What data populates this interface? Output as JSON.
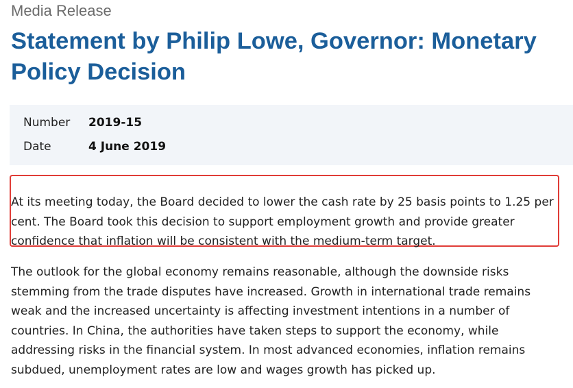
{
  "header": {
    "kicker": "Media Release",
    "title": "Statement by Philip Lowe, Governor: Monetary Policy Decision"
  },
  "meta": {
    "number_label": "Number",
    "number_value": "2019-15",
    "date_label": "Date",
    "date_value": "4 June 2019"
  },
  "body": {
    "paragraph1": "At its meeting today, the Board decided to lower the cash rate by 25 basis points to 1.25 per cent. The Board took this decision to support employment growth and provide greater confidence that inflation will be consistent with the medium-term target.",
    "paragraph2": "The outlook for the global economy remains reasonable, although the downside risks stemming from the trade disputes have increased. Growth in international trade remains weak and the increased uncertainty is affecting investment intentions in a number of countries. In China, the authorities have taken steps to support the economy, while addressing risks in the financial system. In most advanced economies, inflation remains subdued, unemployment rates are low and wages growth has picked up."
  },
  "colors": {
    "title": "#1b5e9a",
    "highlight_border": "#e03c37",
    "meta_background": "#f2f5f9"
  }
}
